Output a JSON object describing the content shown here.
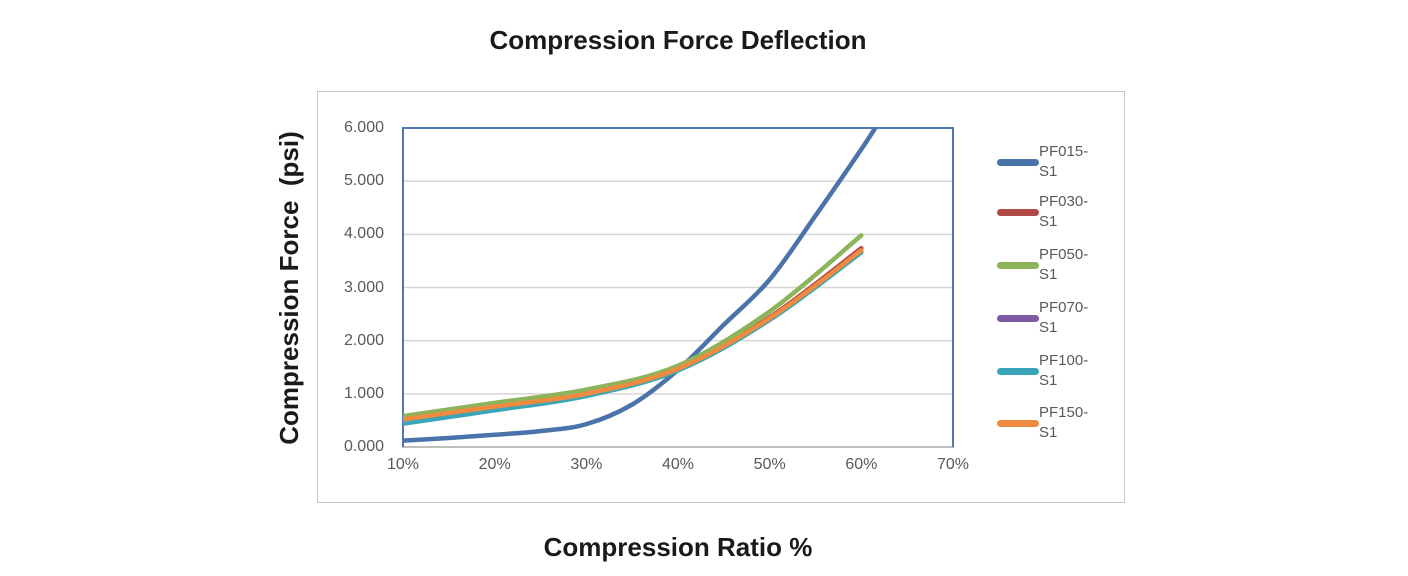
{
  "page": {
    "background": "#ffffff"
  },
  "chart": {
    "title": "Compression Force Deflection",
    "x_axis_title": "Compression Ratio %",
    "y_axis_title": "Compression Force  (psi)",
    "colors": {
      "plot_border": "#4E79B2",
      "gridline": "#d6d6d6",
      "bottom_axis": "#bfbebd",
      "tick_text": "#595959",
      "title_text": "#1a1a1a",
      "chart_box_border": "#c9c7c5"
    }
  },
  "chart_data": {
    "type": "line",
    "title": "Compression Force Deflection",
    "xlabel": "Compression Ratio %",
    "ylabel": "Compression Force (psi)",
    "xlim": [
      10,
      70
    ],
    "ylim": [
      0,
      6
    ],
    "x_tick_labels": [
      "10%",
      "20%",
      "30%",
      "40%",
      "50%",
      "60%",
      "70%"
    ],
    "x_tick_values": [
      10,
      20,
      30,
      40,
      50,
      60,
      70
    ],
    "y_tick_labels": [
      "0.000",
      "1.000",
      "2.000",
      "3.000",
      "4.000",
      "5.000",
      "6.000"
    ],
    "y_tick_values": [
      0,
      1,
      2,
      3,
      4,
      5,
      6
    ],
    "grid": "horizontal",
    "legend_position": "right",
    "series": [
      {
        "name": "PF015-S1",
        "color": "#4A73A9",
        "points": [
          [
            10,
            0.12
          ],
          [
            15,
            0.17
          ],
          [
            20,
            0.23
          ],
          [
            25,
            0.3
          ],
          [
            30,
            0.43
          ],
          [
            35,
            0.8
          ],
          [
            40,
            1.45
          ],
          [
            45,
            2.3
          ],
          [
            50,
            3.15
          ],
          [
            55,
            4.35
          ],
          [
            60,
            5.6
          ],
          [
            63,
            6.4
          ]
        ]
      },
      {
        "name": "PF030-S1",
        "color": "#B04A47",
        "points": [
          [
            10,
            0.5
          ],
          [
            20,
            0.74
          ],
          [
            30,
            0.99
          ],
          [
            40,
            1.46
          ],
          [
            50,
            2.44
          ],
          [
            60,
            3.74
          ]
        ]
      },
      {
        "name": "PF050-S1",
        "color": "#8DB45A",
        "points": [
          [
            10,
            0.58
          ],
          [
            20,
            0.83
          ],
          [
            30,
            1.08
          ],
          [
            40,
            1.53
          ],
          [
            50,
            2.55
          ],
          [
            60,
            3.98
          ]
        ]
      },
      {
        "name": "PF070-S1",
        "color": "#7C5BA2",
        "points": [
          [
            10,
            0.47
          ],
          [
            20,
            0.72
          ],
          [
            30,
            0.97
          ],
          [
            40,
            1.45
          ],
          [
            50,
            2.41
          ],
          [
            60,
            3.68
          ]
        ]
      },
      {
        "name": "PF100-S1",
        "color": "#3AA5B9",
        "points": [
          [
            10,
            0.44
          ],
          [
            20,
            0.69
          ],
          [
            30,
            0.96
          ],
          [
            40,
            1.44
          ],
          [
            50,
            2.39
          ],
          [
            60,
            3.66
          ]
        ]
      },
      {
        "name": "PF150-S1",
        "color": "#EE8B40",
        "points": [
          [
            10,
            0.52
          ],
          [
            20,
            0.76
          ],
          [
            30,
            1.0
          ],
          [
            40,
            1.47
          ],
          [
            50,
            2.42
          ],
          [
            60,
            3.7
          ]
        ]
      }
    ]
  }
}
